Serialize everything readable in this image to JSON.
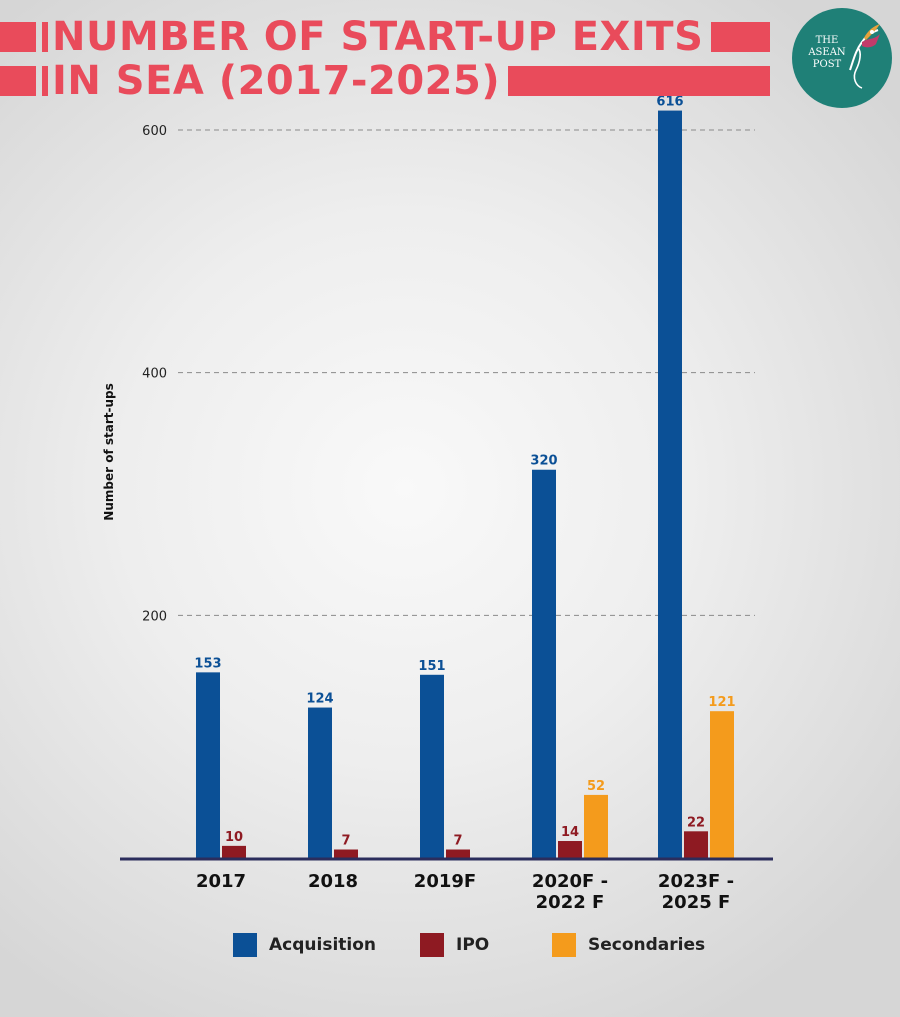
{
  "title": {
    "line1": "NUMBER OF START-UP EXITS",
    "line2": "IN SEA (2017-2025)"
  },
  "logo": {
    "text": "THE\nASEAN\nPOST",
    "icon": "hummingbird-icon"
  },
  "colors": {
    "title": "#e94b5b",
    "acquisition": "#0b5096",
    "ipo": "#8e1a22",
    "secondaries": "#f49b1c",
    "logo_bg": "#1f8077"
  },
  "chart_data": {
    "type": "bar",
    "ylabel": "Number of start-ups",
    "ylim": [
      0,
      600
    ],
    "yticks": [
      200,
      400,
      600
    ],
    "grid": true,
    "legend_placement": "bottom",
    "categories": [
      "2017",
      "2018",
      "2019F",
      "2020F - 2022 F",
      "2023F - 2025 F"
    ],
    "category_lines": [
      [
        "2017"
      ],
      [
        "2018"
      ],
      [
        "2019F"
      ],
      [
        "2020F -",
        "2022 F"
      ],
      [
        "2023F -",
        "2025 F"
      ]
    ],
    "series": [
      {
        "name": "Acquisition",
        "values": [
          153,
          124,
          151,
          320,
          616
        ]
      },
      {
        "name": "IPO",
        "values": [
          10,
          7,
          7,
          14,
          22
        ]
      },
      {
        "name": "Secondaries",
        "values": [
          null,
          null,
          null,
          52,
          121
        ]
      }
    ]
  }
}
